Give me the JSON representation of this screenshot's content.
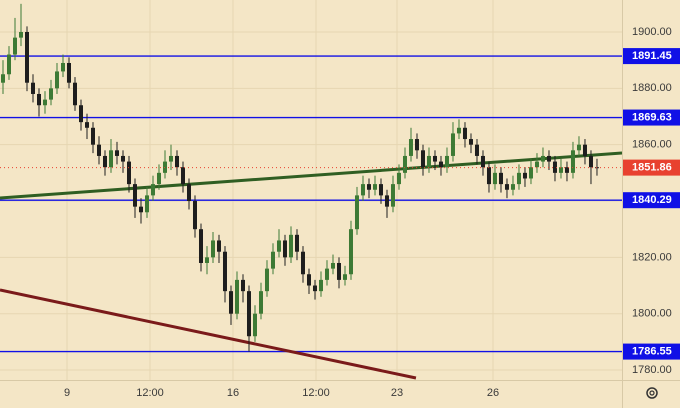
{
  "chart_data": {
    "type": "candlestick",
    "open": [
      1882,
      1885,
      1892,
      1898,
      1900,
      1882,
      1878,
      1874,
      1876,
      1880,
      1886,
      1889,
      1882,
      1874,
      1868,
      1866,
      1860,
      1856,
      1852,
      1858,
      1856,
      1854,
      1846,
      1838,
      1836,
      1842,
      1846,
      1850,
      1854,
      1856,
      1852,
      1846,
      1840,
      1830,
      1818,
      1820,
      1826,
      1822,
      1808,
      1800,
      1812,
      1808,
      1792,
      1800,
      1808,
      1816,
      1822,
      1826,
      1820,
      1828,
      1822,
      1814,
      1810,
      1808,
      1812,
      1816,
      1818,
      1812,
      1814,
      1830,
      1842,
      1846,
      1844,
      1846,
      1842,
      1838,
      1846,
      1850,
      1856,
      1862,
      1858,
      1852,
      1856,
      1854,
      1852,
      1856,
      1864,
      1866,
      1862,
      1860,
      1856,
      1852,
      1846,
      1850,
      1846,
      1844,
      1846,
      1850,
      1848,
      1852,
      1854,
      1856,
      1854,
      1850,
      1852,
      1850,
      1858,
      1860,
      1856,
      1852
    ],
    "high": [
      1890,
      1895,
      1905,
      1910,
      1902,
      1885,
      1880,
      1879,
      1883,
      1889,
      1892,
      1891,
      1884,
      1876,
      1871,
      1868,
      1863,
      1858,
      1862,
      1861,
      1858,
      1856,
      1848,
      1841,
      1845,
      1849,
      1853,
      1858,
      1860,
      1858,
      1854,
      1848,
      1842,
      1832,
      1824,
      1829,
      1828,
      1824,
      1810,
      1815,
      1814,
      1810,
      1803,
      1811,
      1819,
      1825,
      1830,
      1828,
      1831,
      1830,
      1824,
      1816,
      1812,
      1815,
      1819,
      1821,
      1820,
      1817,
      1833,
      1845,
      1849,
      1848,
      1849,
      1848,
      1844,
      1849,
      1853,
      1859,
      1866,
      1864,
      1860,
      1859,
      1858,
      1856,
      1859,
      1868,
      1869,
      1868,
      1864,
      1862,
      1858,
      1854,
      1853,
      1852,
      1848,
      1849,
      1853,
      1852,
      1855,
      1857,
      1859,
      1858,
      1856,
      1855,
      1854,
      1861,
      1863,
      1862,
      1858,
      1855
    ],
    "low": [
      1878,
      1883,
      1890,
      1895,
      1879,
      1875,
      1870,
      1871,
      1874,
      1878,
      1884,
      1880,
      1872,
      1865,
      1862,
      1857,
      1853,
      1849,
      1850,
      1853,
      1850,
      1843,
      1834,
      1832,
      1834,
      1840,
      1844,
      1848,
      1851,
      1849,
      1843,
      1837,
      1827,
      1815,
      1814,
      1818,
      1818,
      1804,
      1796,
      1798,
      1804,
      1786.55,
      1790,
      1798,
      1806,
      1814,
      1820,
      1817,
      1818,
      1819,
      1811,
      1807,
      1805,
      1806,
      1810,
      1814,
      1809,
      1810,
      1812,
      1828,
      1840,
      1841,
      1842,
      1839,
      1834,
      1836,
      1844,
      1848,
      1854,
      1855,
      1849,
      1850,
      1851,
      1849,
      1850,
      1854,
      1862,
      1859,
      1857,
      1853,
      1849,
      1843,
      1844,
      1843,
      1841,
      1842,
      1844,
      1845,
      1846,
      1850,
      1852,
      1851,
      1847,
      1848,
      1847,
      1848,
      1856,
      1853,
      1846,
      1849
    ],
    "close": [
      1885,
      1892,
      1898,
      1900,
      1882,
      1878,
      1874,
      1876,
      1880,
      1886,
      1889,
      1882,
      1874,
      1868,
      1866,
      1860,
      1856,
      1852,
      1858,
      1856,
      1854,
      1846,
      1838,
      1836,
      1842,
      1846,
      1850,
      1854,
      1856,
      1852,
      1846,
      1840,
      1830,
      1818,
      1820,
      1826,
      1822,
      1808,
      1800,
      1812,
      1808,
      1792,
      1800,
      1808,
      1816,
      1822,
      1826,
      1820,
      1828,
      1822,
      1814,
      1810,
      1808,
      1812,
      1816,
      1818,
      1812,
      1814,
      1830,
      1842,
      1846,
      1844,
      1846,
      1842,
      1838,
      1846,
      1850,
      1856,
      1862,
      1858,
      1852,
      1856,
      1854,
      1852,
      1856,
      1864,
      1866,
      1862,
      1860,
      1856,
      1852,
      1846,
      1850,
      1846,
      1844,
      1846,
      1850,
      1848,
      1852,
      1854,
      1856,
      1854,
      1850,
      1852,
      1850,
      1858,
      1860,
      1856,
      1852,
      1851.86
    ],
    "up_color": "#3d7a35",
    "down_color": "#1e1e1e",
    "ylim": [
      1776.46,
      1911.36
    ],
    "yticks": [
      {
        "value": 1780,
        "label": "1780.00"
      },
      {
        "value": 1800,
        "label": "1800.00"
      },
      {
        "value": 1820,
        "label": "1820.00"
      },
      {
        "value": 1840,
        "label": "1840.00"
      },
      {
        "value": 1860,
        "label": "1860.00"
      },
      {
        "value": 1880,
        "label": "1880.00"
      },
      {
        "value": 1900,
        "label": "1900.00"
      }
    ],
    "xlim": [
      -0.5,
      103.17
    ],
    "xticks": [
      {
        "value": 10.67,
        "label": "9"
      },
      {
        "value": 24.5,
        "label": "12:00"
      },
      {
        "value": 38.33,
        "label": "16"
      },
      {
        "value": 52.17,
        "label": "12:00"
      },
      {
        "value": 65.67,
        "label": "23"
      },
      {
        "value": 81.67,
        "label": "26"
      }
    ],
    "grid": true,
    "levels": [
      1891.45,
      1869.63,
      1840.29,
      1786.55
    ],
    "level_color": "#1010e6",
    "last_price_color": "#e8412f",
    "trendlines": [
      {
        "color": "#2f5e22",
        "x": [
          -0.5,
          103.17
        ],
        "values": [
          1841.07,
          1857.05
        ]
      },
      {
        "color": "#7a1a1a",
        "x": [
          -0.5,
          68.83
        ],
        "values": [
          1808.41,
          1777.17
        ]
      }
    ]
  }
}
